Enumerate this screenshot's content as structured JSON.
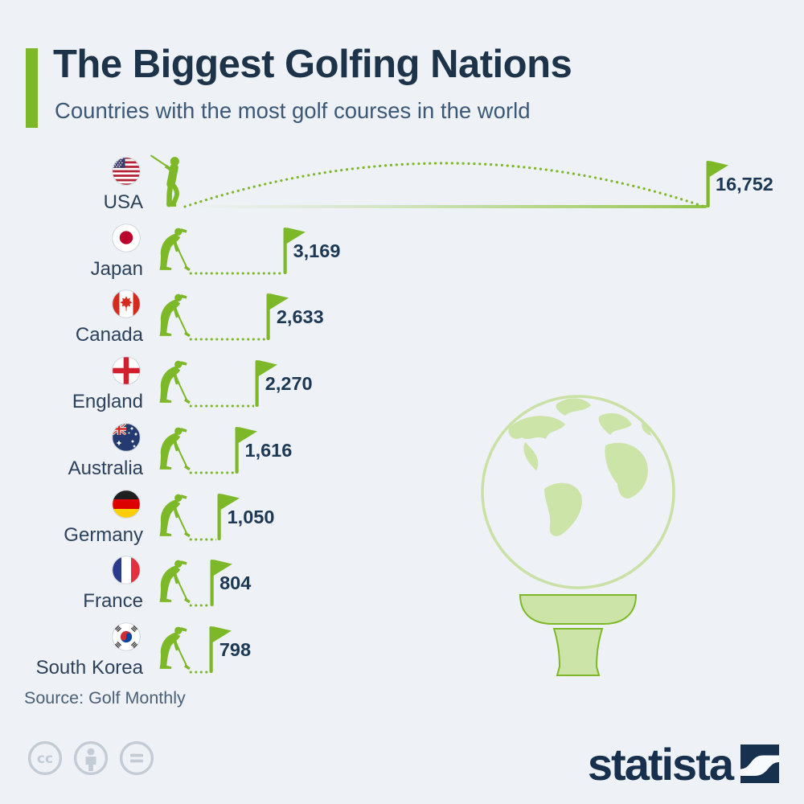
{
  "header": {
    "title": "The Biggest Golfing Nations",
    "subtitle": "Countries with the most golf courses in the world"
  },
  "chart_data": {
    "type": "bar",
    "orientation": "horizontal",
    "title": "The Biggest Golfing Nations",
    "subtitle": "Countries with the most golf courses in the world",
    "unit": "golf courses",
    "categories": [
      "USA",
      "Japan",
      "Canada",
      "England",
      "Australia",
      "Germany",
      "France",
      "South Korea"
    ],
    "values": [
      16752,
      3169,
      2633,
      2270,
      1616,
      1050,
      804,
      798
    ],
    "value_labels": [
      "16,752",
      "3,169",
      "2,633",
      "2,270",
      "1,616",
      "1,050",
      "804",
      "798"
    ],
    "flags": [
      "us",
      "jp",
      "ca",
      "england",
      "au",
      "de",
      "fr",
      "kr"
    ],
    "max_value": 16752,
    "xlim": [
      0,
      16752
    ],
    "grid": false,
    "legend": false
  },
  "footer": {
    "source": "Source: Golf Monthly",
    "license_icons": [
      "creative-commons",
      "attribution",
      "no-derivatives"
    ],
    "brand": "statista"
  },
  "decorations": {
    "globe_icon": "world-globe-on-golf-tee",
    "golfer_icons": [
      "swinging-golfer",
      "putting-golfer"
    ],
    "marker_icon": "golf-flag-marker"
  },
  "colors": {
    "accent_green": "#7db829",
    "light_green": "#cde4a9",
    "navy": "#1c3349",
    "value_text": "#1c3854",
    "subtitle_text": "#3c5878",
    "background": "#eef2f6",
    "license_gray": "#c3ccd5"
  }
}
